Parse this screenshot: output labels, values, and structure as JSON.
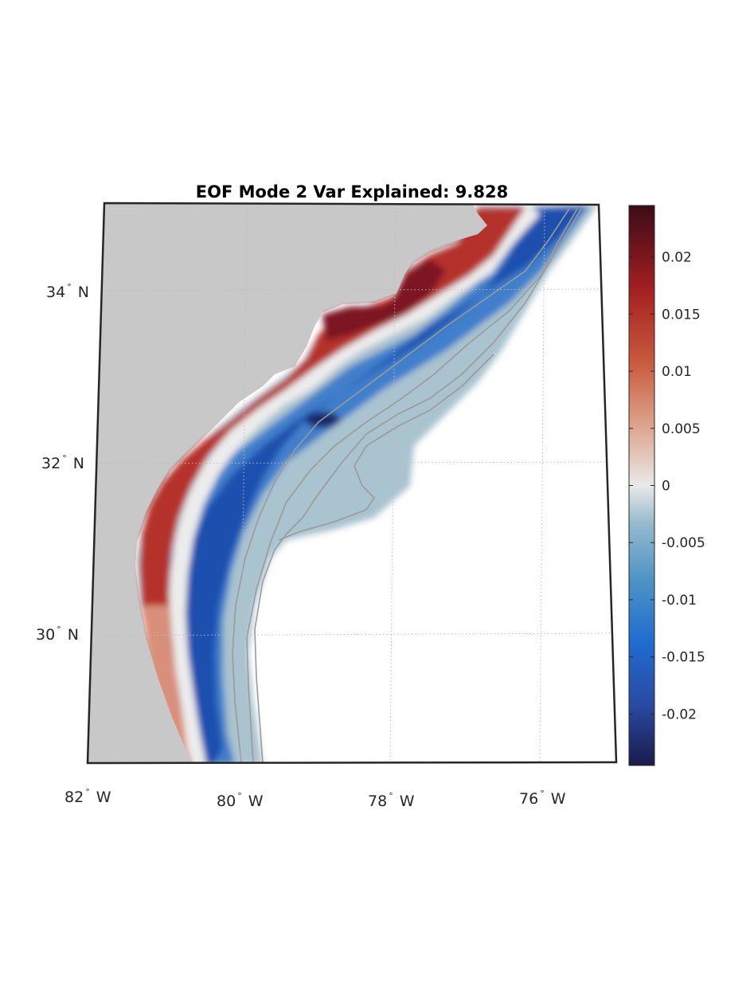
{
  "map": {
    "title": "EOF Mode 2 Var Explained: 9.828",
    "lat_labels": [
      {
        "text": "34",
        "hemisphere": "N",
        "value": 34
      },
      {
        "text": "32",
        "hemisphere": "N",
        "value": 32
      },
      {
        "text": "30",
        "hemisphere": "N",
        "value": 30
      }
    ],
    "lon_labels": [
      {
        "text": "82",
        "hemisphere": "W",
        "value": -82
      },
      {
        "text": "80",
        "hemisphere": "W",
        "value": -80
      },
      {
        "text": "78",
        "hemisphere": "W",
        "value": -78
      },
      {
        "text": "76",
        "hemisphere": "W",
        "value": -76
      }
    ],
    "land_color": "#c8c8c8",
    "grid": true
  },
  "colorbar": {
    "ticks": [
      "0.02",
      "0.015",
      "0.01",
      "0.005",
      "0",
      "-0.005",
      "-0.01",
      "-0.015",
      "-0.02"
    ],
    "range": [
      -0.0245,
      0.0245
    ],
    "stops": [
      "#1a1c4a",
      "#2b4aa5",
      "#1f6ccf",
      "#4d93c6",
      "#93b9cc",
      "#e9e9e9",
      "#dda893",
      "#c95a3c",
      "#a41f22",
      "#3b0c17"
    ]
  }
}
